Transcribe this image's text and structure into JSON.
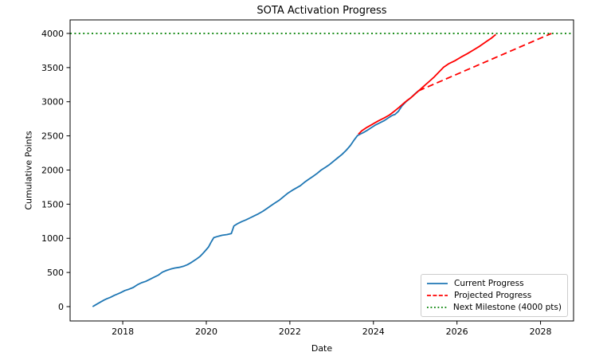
{
  "figure": {
    "title": "SOTA Activation Progress",
    "background_color": "#ffffff",
    "spine_color": "#000000",
    "text_color": "#000000"
  },
  "chart_data": {
    "type": "line",
    "title": "SOTA Activation Progress",
    "xlabel": "Date",
    "ylabel": "Cumulative Points",
    "xlim": [
      2016.74,
      2028.79
    ],
    "ylim": [
      -210,
      4198
    ],
    "x_ticks": [
      2018,
      2020,
      2022,
      2024,
      2026,
      2028
    ],
    "y_ticks": [
      0,
      500,
      1000,
      1500,
      2000,
      2500,
      3000,
      3500,
      4000
    ],
    "grid": false,
    "legend_position": "lower right",
    "milestone_value": 4000,
    "series": [
      {
        "id": "current-progress",
        "legend_label": "Current Progress",
        "in_legend": true,
        "color": "#1f77b4",
        "style": "solid",
        "points": [
          [
            2017.28,
            0
          ],
          [
            2017.35,
            25
          ],
          [
            2017.45,
            60
          ],
          [
            2017.55,
            95
          ],
          [
            2017.62,
            115
          ],
          [
            2017.7,
            135
          ],
          [
            2017.8,
            165
          ],
          [
            2017.88,
            185
          ],
          [
            2017.95,
            205
          ],
          [
            2018.05,
            235
          ],
          [
            2018.15,
            255
          ],
          [
            2018.25,
            280
          ],
          [
            2018.35,
            320
          ],
          [
            2018.45,
            350
          ],
          [
            2018.55,
            370
          ],
          [
            2018.65,
            400
          ],
          [
            2018.75,
            430
          ],
          [
            2018.85,
            460
          ],
          [
            2018.95,
            505
          ],
          [
            2019.05,
            530
          ],
          [
            2019.15,
            550
          ],
          [
            2019.25,
            565
          ],
          [
            2019.35,
            575
          ],
          [
            2019.45,
            590
          ],
          [
            2019.55,
            615
          ],
          [
            2019.65,
            650
          ],
          [
            2019.75,
            690
          ],
          [
            2019.85,
            735
          ],
          [
            2019.95,
            800
          ],
          [
            2020.05,
            870
          ],
          [
            2020.12,
            950
          ],
          [
            2020.18,
            1010
          ],
          [
            2020.28,
            1030
          ],
          [
            2020.38,
            1045
          ],
          [
            2020.5,
            1055
          ],
          [
            2020.6,
            1070
          ],
          [
            2020.66,
            1180
          ],
          [
            2020.75,
            1215
          ],
          [
            2020.85,
            1245
          ],
          [
            2020.95,
            1270
          ],
          [
            2021.05,
            1300
          ],
          [
            2021.15,
            1330
          ],
          [
            2021.25,
            1360
          ],
          [
            2021.35,
            1395
          ],
          [
            2021.45,
            1435
          ],
          [
            2021.55,
            1480
          ],
          [
            2021.65,
            1520
          ],
          [
            2021.75,
            1560
          ],
          [
            2021.85,
            1610
          ],
          [
            2021.95,
            1660
          ],
          [
            2022.05,
            1700
          ],
          [
            2022.15,
            1735
          ],
          [
            2022.25,
            1770
          ],
          [
            2022.35,
            1820
          ],
          [
            2022.45,
            1865
          ],
          [
            2022.55,
            1905
          ],
          [
            2022.65,
            1950
          ],
          [
            2022.75,
            2000
          ],
          [
            2022.85,
            2040
          ],
          [
            2022.95,
            2080
          ],
          [
            2023.05,
            2130
          ],
          [
            2023.15,
            2180
          ],
          [
            2023.25,
            2230
          ],
          [
            2023.35,
            2290
          ],
          [
            2023.45,
            2360
          ],
          [
            2023.55,
            2450
          ],
          [
            2023.62,
            2505
          ],
          [
            2023.7,
            2530
          ],
          [
            2023.78,
            2555
          ],
          [
            2023.85,
            2580
          ],
          [
            2023.95,
            2620
          ],
          [
            2024.05,
            2660
          ],
          [
            2024.15,
            2690
          ],
          [
            2024.25,
            2720
          ],
          [
            2024.35,
            2760
          ],
          [
            2024.45,
            2800
          ],
          [
            2024.52,
            2815
          ],
          [
            2024.6,
            2860
          ],
          [
            2024.68,
            2935
          ],
          [
            2024.78,
            3000
          ],
          [
            2024.88,
            3050
          ],
          [
            2024.95,
            3090
          ],
          [
            2025.02,
            3130
          ],
          [
            2025.08,
            3160
          ]
        ]
      },
      {
        "id": "recent-trend",
        "legend_label": "Projected Progress",
        "in_legend": false,
        "color": "#ff0000",
        "style": "solid",
        "points": [
          [
            2023.64,
            2525
          ],
          [
            2023.72,
            2575
          ],
          [
            2023.82,
            2615
          ],
          [
            2023.92,
            2650
          ],
          [
            2024.02,
            2685
          ],
          [
            2024.12,
            2720
          ],
          [
            2024.25,
            2760
          ],
          [
            2024.38,
            2805
          ],
          [
            2024.5,
            2860
          ],
          [
            2024.62,
            2920
          ],
          [
            2024.72,
            2975
          ],
          [
            2024.8,
            3015
          ],
          [
            2024.9,
            3060
          ],
          [
            2025.0,
            3115
          ],
          [
            2025.1,
            3170
          ],
          [
            2025.22,
            3235
          ],
          [
            2025.34,
            3300
          ],
          [
            2025.46,
            3365
          ],
          [
            2025.56,
            3430
          ],
          [
            2025.68,
            3505
          ],
          [
            2025.8,
            3555
          ],
          [
            2025.95,
            3600
          ],
          [
            2026.1,
            3655
          ],
          [
            2026.25,
            3705
          ],
          [
            2026.4,
            3760
          ],
          [
            2026.55,
            3815
          ],
          [
            2026.7,
            3880
          ],
          [
            2026.82,
            3930
          ],
          [
            2026.93,
            3985
          ]
        ]
      },
      {
        "id": "projected-progress",
        "legend_label": "Projected Progress",
        "in_legend": true,
        "color": "#ff0000",
        "style": "dashed",
        "points": [
          [
            2025.08,
            3160
          ],
          [
            2028.26,
            4000
          ]
        ]
      },
      {
        "id": "next-milestone",
        "legend_label": "Next Milestone (4000 pts)",
        "in_legend": true,
        "color": "#008000",
        "style": "dotted",
        "points": [
          [
            2016.74,
            4000
          ],
          [
            2028.79,
            4000
          ]
        ]
      }
    ]
  }
}
